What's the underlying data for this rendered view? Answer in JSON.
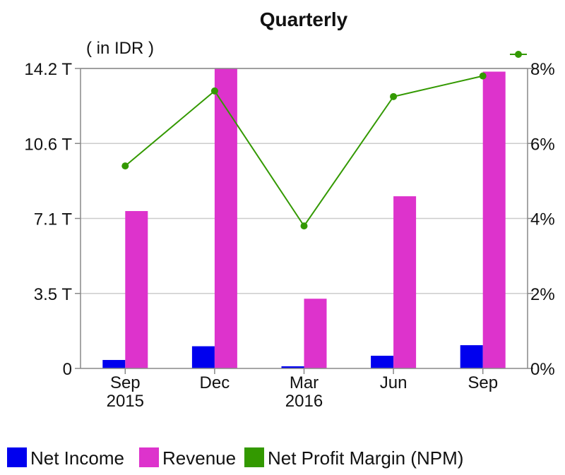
{
  "chart_data": {
    "type": "bar",
    "title": "Quarterly",
    "unit_label": "( in IDR )",
    "categories": [
      {
        "line1": "Sep",
        "line2": "2015"
      },
      {
        "line1": "Dec",
        "line2": ""
      },
      {
        "line1": "Mar",
        "line2": "2016"
      },
      {
        "line1": "Jun",
        "line2": ""
      },
      {
        "line1": "Sep",
        "line2": ""
      }
    ],
    "y_left": {
      "min": 0,
      "max": 14.2,
      "ticks": [
        0,
        3.55,
        7.1,
        10.65,
        14.2
      ],
      "tick_labels": [
        "0",
        "3.5 T",
        "7.1 T",
        "10.6 T",
        "14.2 T"
      ]
    },
    "y_right": {
      "min": 0,
      "max": 8,
      "ticks": [
        0,
        2,
        4,
        6,
        8
      ],
      "tick_labels": [
        "0%",
        "2%",
        "4%",
        "6%",
        "8%"
      ]
    },
    "grid": true,
    "legend_position": "bottom",
    "series": [
      {
        "name": "Net Income",
        "kind": "bar",
        "axis": "left",
        "color": "#0000ee",
        "values": [
          0.4,
          1.05,
          0.1,
          0.6,
          1.1
        ]
      },
      {
        "name": "Revenue",
        "kind": "bar",
        "axis": "left",
        "color": "#dd33cc",
        "values": [
          7.45,
          14.2,
          3.3,
          8.15,
          14.05
        ]
      },
      {
        "name": "Net Profit Margin (NPM)",
        "kind": "line",
        "axis": "right",
        "color": "#339900",
        "values": [
          5.4,
          7.4,
          3.8,
          7.25,
          7.8
        ]
      }
    ]
  }
}
